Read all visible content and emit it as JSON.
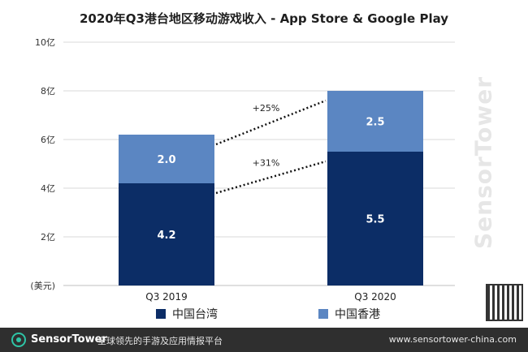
{
  "chart_data": {
    "type": "bar",
    "title": "2020年Q3港台地区移动游戏收入 - App Store & Google Play",
    "categories": [
      "Q3  2019",
      "Q3 2020"
    ],
    "series": [
      {
        "name": "中国台湾",
        "values": [
          4.2,
          5.5
        ],
        "color": "#0c2d66"
      },
      {
        "name": "中国香港",
        "values": [
          2.0,
          2.5
        ],
        "color": "#5b86c2"
      }
    ],
    "stacked": true,
    "ylim": [
      0,
      10
    ],
    "yticks": [
      0,
      2,
      4,
      6,
      8,
      10
    ],
    "ytick_labels": [
      "(美元)",
      "2亿",
      "4亿",
      "6亿",
      "8亿",
      "10亿"
    ],
    "grid": true,
    "annotations": [
      {
        "label": "+25%",
        "from": [
          0,
          6.2
        ],
        "to": [
          1,
          8.0
        ]
      },
      {
        "label": "+31%",
        "from": [
          0,
          4.2
        ],
        "to": [
          1,
          5.5
        ]
      }
    ],
    "legend": "bottom"
  },
  "footer": {
    "brand": "SensorTower",
    "slogan": "全球领先的手游及应用情报平台",
    "url": "www.sensortower-china.com"
  },
  "watermark": "SensorTower",
  "colors": {
    "dark_blue": "#0c2d66",
    "light_blue": "#5b86c2",
    "grid": "#d9d9d9"
  }
}
